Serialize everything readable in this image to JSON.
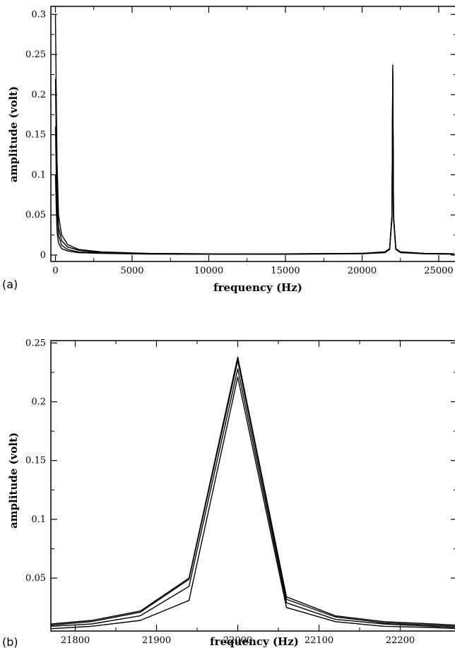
{
  "chart_data": [
    {
      "type": "line",
      "panel_label": "(a)",
      "xlabel": "frequency (Hz)",
      "ylabel": "amplitude (volt)",
      "xlim": [
        -300,
        26200
      ],
      "ylim": [
        -0.008,
        0.31
      ],
      "x_ticks": [
        0,
        5000,
        10000,
        15000,
        20000,
        25000
      ],
      "x_tick_labels": [
        "0",
        "5000",
        "10000",
        "15000",
        "20000",
        "25000"
      ],
      "y_ticks": [
        0,
        0.05,
        0.1,
        0.15,
        0.2,
        0.25,
        0.3
      ],
      "y_tick_labels": [
        "0",
        "0.05",
        "0.1",
        "0.15",
        "0.2",
        "0.25",
        "0.3"
      ],
      "grid": false,
      "series": [
        {
          "x": [
            0,
            50,
            100,
            200,
            400,
            800,
            1500,
            3000,
            6000,
            10000,
            15000,
            20000,
            21500,
            21800,
            21950,
            22000,
            22050,
            22200,
            22500,
            24000,
            26000
          ],
          "values": [
            0.3,
            0.2,
            0.12,
            0.05,
            0.025,
            0.013,
            0.007,
            0.004,
            0.002,
            0.0015,
            0.0015,
            0.002,
            0.004,
            0.008,
            0.05,
            0.237,
            0.05,
            0.008,
            0.004,
            0.002,
            0.0015
          ]
        },
        {
          "x": [
            0,
            50,
            100,
            200,
            400,
            800,
            1500,
            3000,
            6000,
            10000,
            15000,
            20000,
            21500,
            21800,
            21950,
            22000,
            22050,
            22200,
            22500,
            24000,
            26000
          ],
          "values": [
            0.22,
            0.14,
            0.08,
            0.035,
            0.018,
            0.01,
            0.006,
            0.003,
            0.002,
            0.0015,
            0.0015,
            0.002,
            0.004,
            0.008,
            0.05,
            0.232,
            0.05,
            0.008,
            0.004,
            0.002,
            0.0015
          ]
        },
        {
          "x": [
            0,
            50,
            100,
            200,
            400,
            800,
            1500,
            3000,
            6000,
            10000,
            15000,
            20000,
            21500,
            21800,
            21950,
            22000,
            22050,
            22200,
            22500,
            24000,
            26000
          ],
          "values": [
            0.16,
            0.1,
            0.055,
            0.025,
            0.012,
            0.007,
            0.004,
            0.0025,
            0.0015,
            0.0012,
            0.0012,
            0.002,
            0.004,
            0.008,
            0.048,
            0.226,
            0.048,
            0.008,
            0.004,
            0.002,
            0.0015
          ]
        },
        {
          "x": [
            0,
            50,
            100,
            200,
            400,
            800,
            1500,
            3000,
            6000,
            10000,
            15000,
            20000,
            21500,
            21800,
            21950,
            22000,
            22050,
            22200,
            22500,
            24000,
            26000
          ],
          "values": [
            0.1,
            0.06,
            0.03,
            0.015,
            0.008,
            0.005,
            0.003,
            0.002,
            0.0012,
            0.001,
            0.001,
            0.0015,
            0.003,
            0.007,
            0.045,
            0.22,
            0.045,
            0.007,
            0.003,
            0.0015,
            0.001
          ]
        }
      ]
    },
    {
      "type": "line",
      "panel_label": "(b)",
      "xlabel": "frequency (Hz)",
      "ylabel": "amplitude (volt)",
      "xlim": [
        21770,
        22270
      ],
      "ylim": [
        0.005,
        0.252
      ],
      "x_ticks": [
        21800,
        21900,
        22000,
        22100,
        22200
      ],
      "x_tick_labels": [
        "21800",
        "21900",
        "22000",
        "22100",
        "22200"
      ],
      "y_ticks": [
        0.05,
        0.1,
        0.15,
        0.2,
        0.25
      ],
      "y_tick_labels": [
        "0.05",
        "0.1",
        "0.15",
        "0.2",
        "0.25"
      ],
      "grid": false,
      "series": [
        {
          "x": [
            21770,
            21820,
            21880,
            21940,
            22000,
            22060,
            22120,
            22180,
            22240,
            22270
          ],
          "values": [
            0.011,
            0.014,
            0.022,
            0.05,
            0.238,
            0.034,
            0.018,
            0.013,
            0.011,
            0.01
          ]
        },
        {
          "x": [
            21770,
            21820,
            21880,
            21940,
            22000,
            22060,
            22120,
            22180,
            22240,
            22270
          ],
          "values": [
            0.01,
            0.013,
            0.021,
            0.049,
            0.235,
            0.032,
            0.017,
            0.012,
            0.01,
            0.009
          ]
        },
        {
          "x": [
            21770,
            21820,
            21880,
            21940,
            22000,
            22060,
            22120,
            22180,
            22240,
            22270
          ],
          "values": [
            0.009,
            0.011,
            0.018,
            0.043,
            0.228,
            0.029,
            0.015,
            0.011,
            0.009,
            0.008
          ]
        },
        {
          "x": [
            21770,
            21820,
            21880,
            21940,
            22000,
            22060,
            22120,
            22180,
            22240,
            22270
          ],
          "values": [
            0.007,
            0.009,
            0.014,
            0.031,
            0.221,
            0.025,
            0.013,
            0.009,
            0.008,
            0.007
          ]
        }
      ]
    }
  ]
}
